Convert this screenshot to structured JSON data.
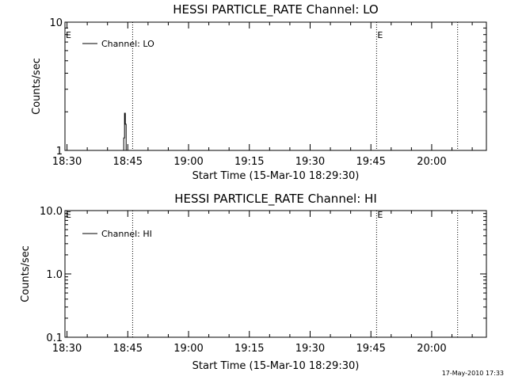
{
  "chart_data": [
    {
      "type": "line",
      "title": "HESSI PARTICLE_RATE Channel: LO",
      "xlabel": "Start Time (15-Mar-10 18:29:30)",
      "ylabel": "Counts/sec",
      "y_scale": "log",
      "ylim": [
        1,
        10
      ],
      "y_ticks": [
        "1",
        "10"
      ],
      "x_ticks": [
        "18:30",
        "18:45",
        "19:00",
        "19:15",
        "19:30",
        "19:45",
        "20:00"
      ],
      "x_tick_minutes": [
        30,
        45,
        60,
        75,
        90,
        105,
        120
      ],
      "xlim_minutes": [
        29.5,
        133.5
      ],
      "legend": "Channel: LO",
      "legend_position": "top-left",
      "event_lines_minutes": [
        46.2,
        106.4,
        126.4
      ],
      "event_labels": [
        "E",
        "E"
      ],
      "event_label_minutes": [
        29.5,
        106.4
      ],
      "series": [
        {
          "name": "Channel: LO",
          "x_minutes": [
            43.8,
            44.0,
            44.0,
            44.2,
            44.2,
            44.4,
            44.4,
            44.6,
            44.6,
            44.8
          ],
          "values": [
            1,
            1,
            1.25,
            1.25,
            1.95,
            1.95,
            1.6,
            1.6,
            1,
            1
          ]
        }
      ]
    },
    {
      "type": "line",
      "title": "HESSI PARTICLE_RATE Channel: HI",
      "xlabel": "Start Time (15-Mar-10 18:29:30)",
      "ylabel": "Counts/sec",
      "y_scale": "log",
      "ylim": [
        0.1,
        10
      ],
      "y_ticks": [
        "0.1",
        "1.0",
        "10.0"
      ],
      "x_ticks": [
        "18:30",
        "18:45",
        "19:00",
        "19:15",
        "19:30",
        "19:45",
        "20:00"
      ],
      "x_tick_minutes": [
        30,
        45,
        60,
        75,
        90,
        105,
        120
      ],
      "xlim_minutes": [
        29.5,
        133.5
      ],
      "legend": "Channel: HI",
      "legend_position": "top-left",
      "event_lines_minutes": [
        46.2,
        106.4,
        126.4
      ],
      "event_labels": [
        "E",
        "E"
      ],
      "event_label_minutes": [
        29.5,
        106.4
      ],
      "series": [
        {
          "name": "Channel: HI",
          "x_minutes": [],
          "values": []
        }
      ]
    }
  ],
  "timestamp": "17-May-2010 17:33"
}
